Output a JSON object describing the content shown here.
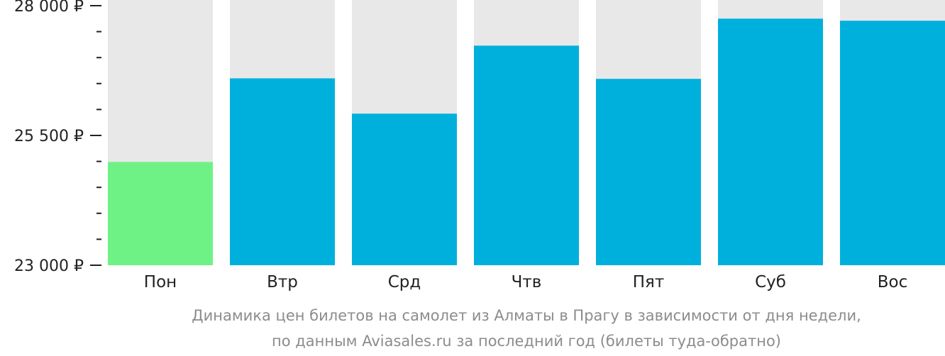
{
  "chart_data": {
    "type": "bar",
    "title": "",
    "xlabel": "",
    "ylabel": "",
    "categories": [
      "Пон",
      "Втр",
      "Срд",
      "Чтв",
      "Пят",
      "Суб",
      "Вос"
    ],
    "values": [
      24990,
      26600,
      25920,
      27230,
      26590,
      27750,
      27710
    ],
    "ylim": [
      23000,
      28000
    ],
    "y_ticks": [
      {
        "value": 23000,
        "label": "23 000 ₽"
      },
      {
        "value": 25500,
        "label": "25 500 ₽"
      },
      {
        "value": 28000,
        "label": "28 000 ₽"
      }
    ],
    "y_minor_step": 500,
    "highlight_category": "Пон",
    "colors": {
      "bar": "#00b0dc",
      "bar_highlight": "#6ef285",
      "bar_background": "#e8e8e8",
      "tick": "#222222",
      "caption": "#8c8c8c"
    },
    "caption_lines": [
      "Динамика цен билетов на самолет из Алматы в Прагу в зависимости от дня недели,",
      "по данным Aviasales.ru за последний год (билеты туда-обратно)"
    ]
  }
}
